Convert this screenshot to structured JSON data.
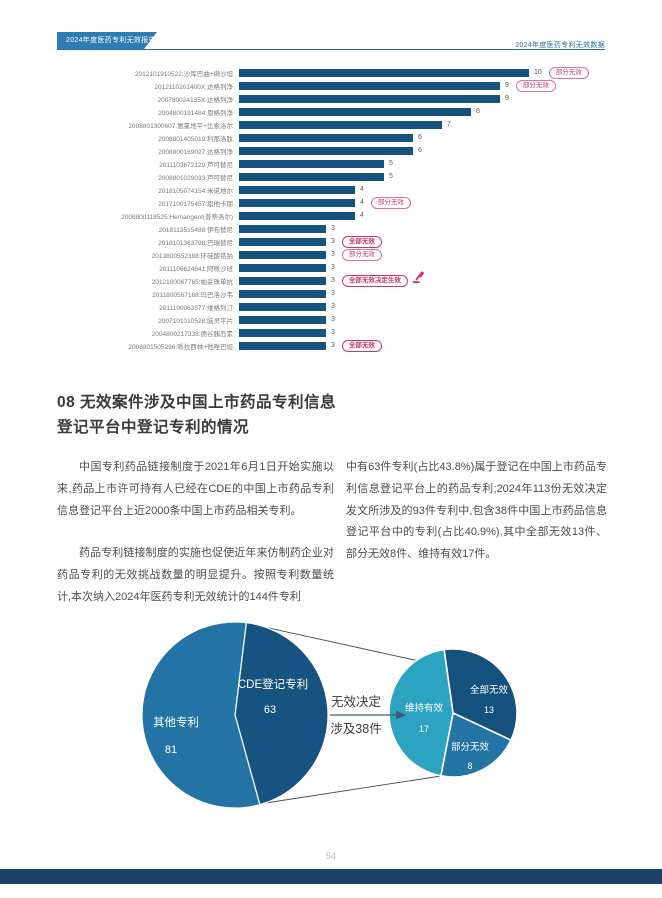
{
  "header": {
    "left_tag": "2024年度医药专利无效报告",
    "right_tag": "2024年度医药专利无效数据"
  },
  "chart_data": [
    {
      "type": "bar",
      "orientation": "horizontal",
      "xlim": [
        0,
        10
      ],
      "bar_color": "#16527e",
      "badge_color": "#c73a67",
      "rows": [
        {
          "label": "2012101910522:沙库巴曲+缬沙坦",
          "value": 10,
          "badge": "部分无效",
          "bold": false
        },
        {
          "label": "2012110201400X:达格列净",
          "value": 9,
          "badge": "部分无效",
          "bold": false
        },
        {
          "label": "200780024135X:达格列净",
          "value": 9
        },
        {
          "label": "2004800191484:恩格列净",
          "value": 8
        },
        {
          "label": "2008801300607:氨氯地平+比索洛尔",
          "value": 7
        },
        {
          "label": "2008801405019:利那洛肽",
          "value": 6
        },
        {
          "label": "2008800169027:达格列净",
          "value": 6
        },
        {
          "label": "2011103672129:芦可替尼",
          "value": 5
        },
        {
          "label": "2008801029033:芦可替尼",
          "value": 5
        },
        {
          "label": "2018105074154:米诺地尔",
          "value": 4
        },
        {
          "label": "2017100175457:恩他卡朋",
          "value": 4,
          "badge": "部分无效",
          "bold": false
        },
        {
          "label": "2008800118525:Hemangeol(普萘洛尔)",
          "value": 4
        },
        {
          "label": "2018113515488:伊布替尼",
          "value": 3
        },
        {
          "label": "2018101363798:巴瑞替尼",
          "value": 3,
          "badge": "全部无效",
          "bold": true
        },
        {
          "label": "2013800552388:环硅酸锆钠",
          "value": 3,
          "badge": "部分无效",
          "bold": false
        },
        {
          "label": "2011106624841:阿哌沙班",
          "value": 3
        },
        {
          "label": "2012100067765:帕妥珠单抗",
          "value": 3,
          "badge": "全部无效决定生效",
          "bold": true,
          "gavel": true
        },
        {
          "label": "2011800567168:玛巴洛沙韦",
          "value": 3
        },
        {
          "label": "2011100063577:维格列汀",
          "value": 3
        },
        {
          "label": "2007101010528:脑灵平片",
          "value": 3
        },
        {
          "label": "2004800217338:德谷胰岛素",
          "value": 3
        },
        {
          "label": "2008801505296:哌拉西林+他唑巴坦",
          "value": 3,
          "badge": "全部无效",
          "bold": true
        }
      ]
    },
    {
      "type": "pie",
      "name": "registered-vs-other-patents",
      "start_angle_deg": 7,
      "slices": [
        {
          "label": "CDE登记专利",
          "value": 63,
          "color": "#175380"
        },
        {
          "label": "其他专利",
          "value": 81,
          "color": "#2473a5"
        }
      ]
    },
    {
      "type": "pie",
      "name": "decision-outcomes",
      "start_angle_deg": -8,
      "slices": [
        {
          "label": "全部无效",
          "value": 13,
          "color": "#14527d"
        },
        {
          "label": "部分无效",
          "value": 8,
          "color": "#2473a5"
        },
        {
          "label": "维持有效",
          "value": 17,
          "color": "#2da3c2"
        }
      ]
    }
  ],
  "pie_annotation": {
    "line1": "无效决定",
    "line2": "涉及38件"
  },
  "section_heading": {
    "line1": "08 无效案件涉及中国上市药品专利信息",
    "line2": "登记平台中登记专利的情况"
  },
  "body": {
    "left_p1": "中国专利药品链接制度于2021年6月1日开始实施以来,药品上市许可持有人已经在CDE的中国上市药品专利信息登记平台上近2000条中国上市药品相关专利。",
    "left_p2": "药品专利链接制度的实施也促使近年来仿制药企业对药品专利的无效挑战数量的明显提升。按照专利数量统计,本次纳入2024年医药专利无效统计的144件专利",
    "right_p1": "中有63件专利(占比43.8%)属于登记在中国上市药品专利信息登记平台上的药品专利;2024年113份无效决定发文所涉及的93件专利中,包含38件中国上市药品信息登记平台中的专利(占比40.9%),其中全部无效13件、部分无效8件、维持有效17件。"
  },
  "footer": {
    "page_number": "54"
  }
}
